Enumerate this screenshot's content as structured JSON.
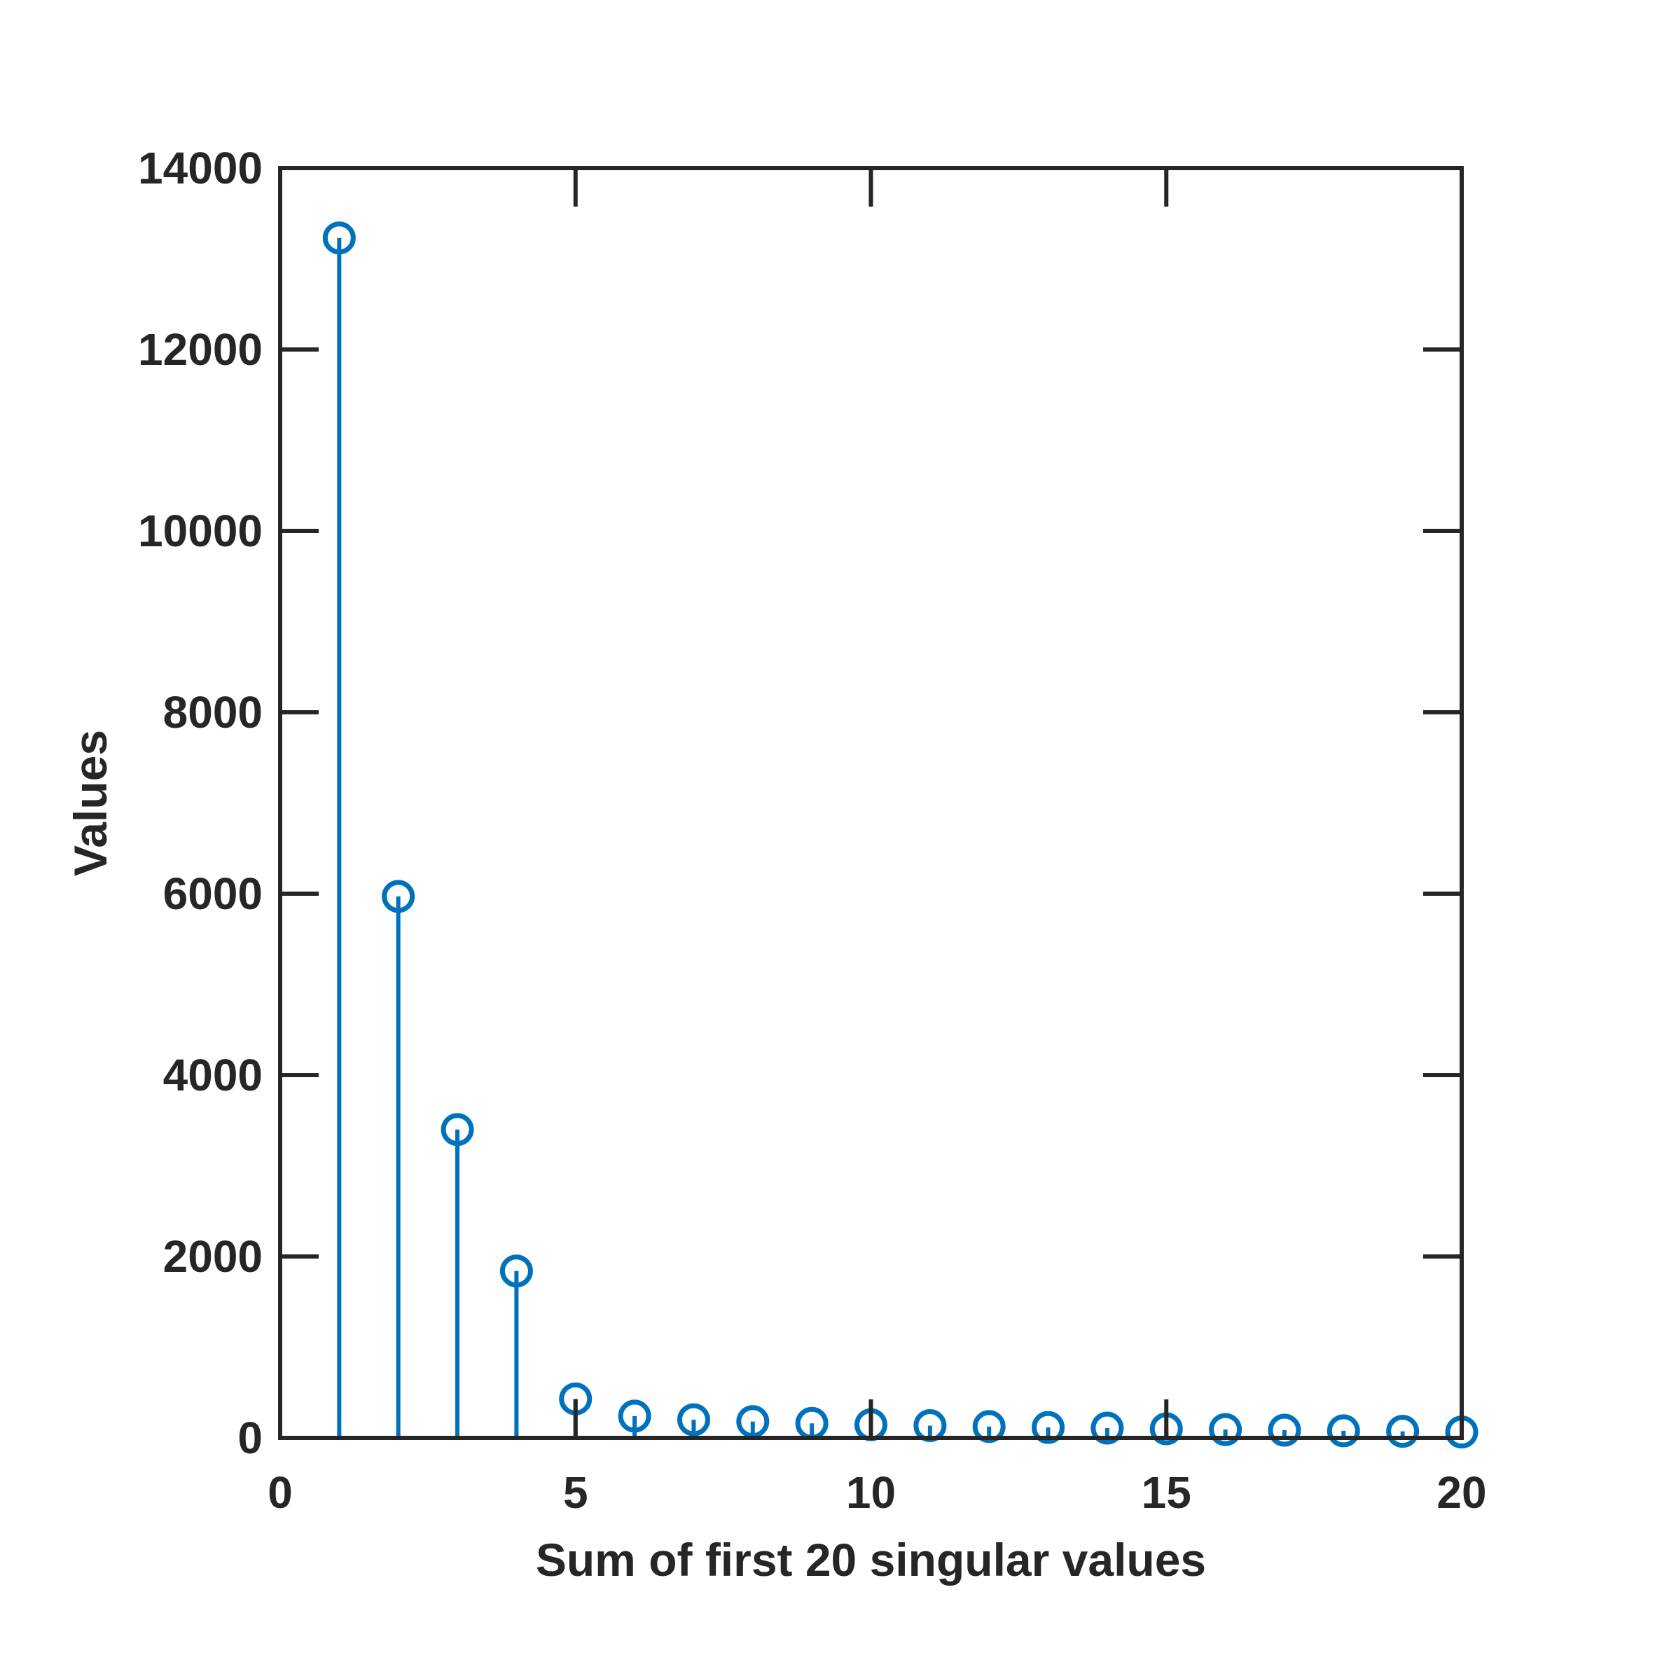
{
  "chart_data": {
    "type": "stem",
    "title": "",
    "xlabel": "Sum of first 20 singular values",
    "ylabel": "Values",
    "xlim": [
      0,
      20
    ],
    "ylim": [
      0,
      14000
    ],
    "xticks": [
      0,
      5,
      10,
      15,
      20
    ],
    "yticks": [
      0,
      2000,
      4000,
      6000,
      8000,
      10000,
      12000,
      14000
    ],
    "grid": false,
    "legend": "none",
    "marker": "open-circle",
    "color": "#0072BD",
    "axis_color": "#262626",
    "x": [
      1,
      2,
      3,
      4,
      5,
      6,
      7,
      8,
      9,
      10,
      11,
      12,
      13,
      14,
      15,
      16,
      17,
      18,
      19,
      20
    ],
    "values": [
      13230,
      5970,
      3400,
      1840,
      430,
      240,
      200,
      180,
      160,
      145,
      135,
      125,
      115,
      108,
      100,
      92,
      85,
      78,
      72,
      65
    ]
  }
}
